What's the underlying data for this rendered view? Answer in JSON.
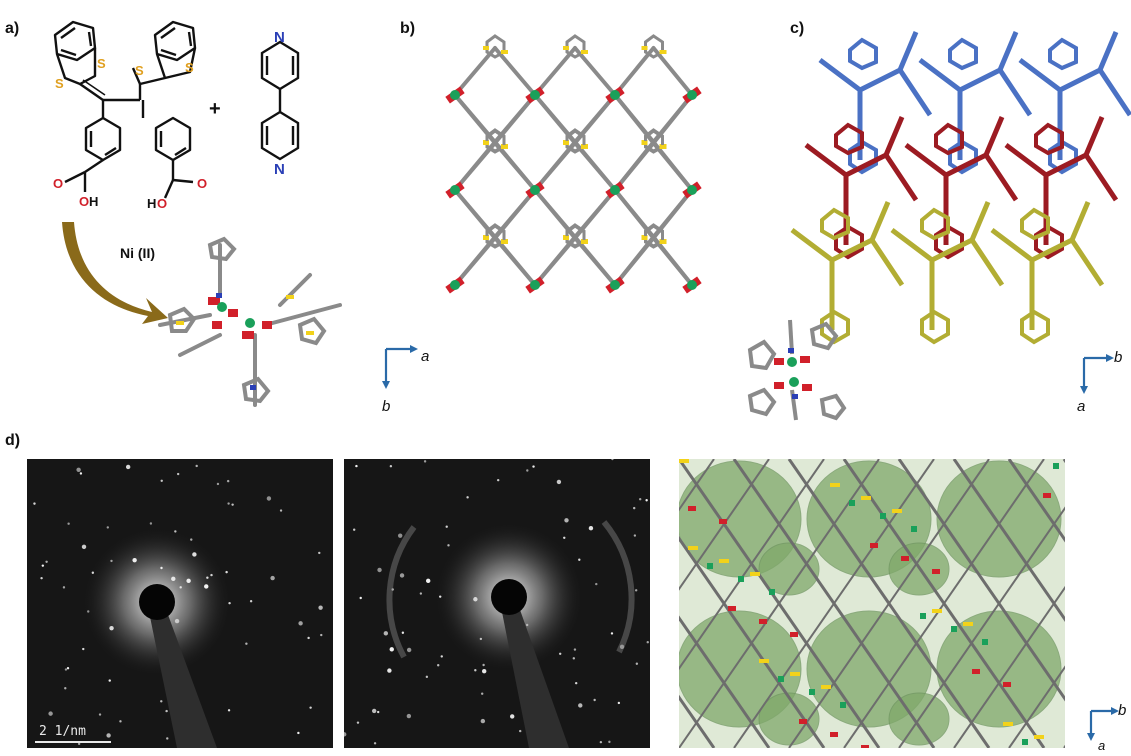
{
  "panels": {
    "a": {
      "label": "a)",
      "plus": "+",
      "reagent": "Ni (II)",
      "atoms": {
        "S": "S",
        "O": "O",
        "H": "H",
        "OH": "OH",
        "N": "N"
      }
    },
    "b": {
      "label": "b)",
      "axes": {
        "x": "a",
        "y": "b"
      }
    },
    "c": {
      "label": "c)",
      "axes": {
        "x": "b",
        "y": "a"
      }
    },
    "d": {
      "label": "d)",
      "scale_bar": "2 1/nm",
      "axes": {
        "x": "b",
        "y": "a"
      }
    }
  },
  "colors": {
    "framework": "#8a8a8a",
    "sulfur": "#f2d21a",
    "oxygen": "#d1202a",
    "nickel": "#1aa05a",
    "nitrogen": "#2a3fb6",
    "layer_top": "#4a71c4",
    "layer_mid": "#9c1b22",
    "layer_bottom": "#b2ad33",
    "pore_surface": "#7fa86a",
    "axis": "#2a6aa8",
    "arrow": "#8a6a1a"
  }
}
